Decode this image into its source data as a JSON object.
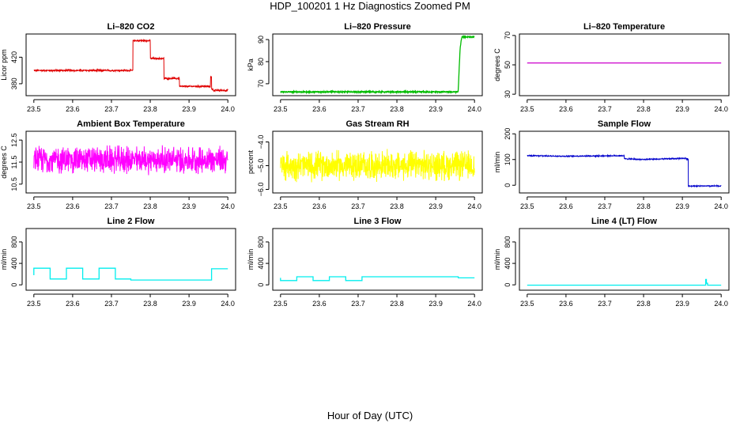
{
  "page": {
    "title": "HDP_100201  1 Hz Diagnostics Zoomed PM",
    "xlabel": "Hour of Day (UTC)"
  },
  "chart_data": [
    {
      "type": "line",
      "title": "Li–820 CO2",
      "ylabel": "Licor ppm",
      "xlim": [
        23.48,
        24.02
      ],
      "ylim": [
        362,
        455
      ],
      "xticks": [
        "23.5",
        "23.6",
        "23.7",
        "23.8",
        "23.9",
        "24.0"
      ],
      "yticks": [
        {
          "value": 380,
          "label": "380"
        },
        {
          "value": 420,
          "label": "420"
        }
      ],
      "color": "#e00000",
      "noise": 1.2,
      "series": [
        {
          "x": [
            23.5,
            23.755,
            23.755,
            23.8,
            23.8,
            23.835,
            23.835,
            23.875,
            23.875,
            23.955,
            23.955,
            23.958,
            23.958,
            23.962,
            23.962,
            24.0
          ],
          "y": [
            400,
            400,
            445,
            445,
            418,
            418,
            388,
            388,
            376,
            376,
            390,
            390,
            372,
            372,
            370,
            370
          ]
        }
      ]
    },
    {
      "type": "line",
      "title": "Li–820 Pressure",
      "ylabel": "kPa",
      "xlim": [
        23.48,
        24.02
      ],
      "ylim": [
        64.6,
        92.5
      ],
      "xticks": [
        "23.5",
        "23.6",
        "23.7",
        "23.8",
        "23.9",
        "24.0"
      ],
      "yticks": [
        {
          "value": 70,
          "label": "70"
        },
        {
          "value": 80,
          "label": "80"
        },
        {
          "value": 90,
          "label": "90"
        }
      ],
      "color": "#00bb00",
      "noise": 0.25,
      "series": [
        {
          "x": [
            23.5,
            23.955,
            23.958,
            23.96,
            23.963,
            23.966,
            23.968,
            24.0
          ],
          "y": [
            66.3,
            66.3,
            66.5,
            75,
            86,
            90,
            91.2,
            91.2
          ]
        }
      ]
    },
    {
      "type": "line",
      "title": "Li–820 Temperature",
      "ylabel": "degrees C",
      "xlim": [
        23.48,
        24.02
      ],
      "ylim": [
        29,
        71
      ],
      "xticks": [
        "23.5",
        "23.6",
        "23.7",
        "23.8",
        "23.9",
        "24.0"
      ],
      "yticks": [
        {
          "value": 30,
          "label": "30"
        },
        {
          "value": 50,
          "label": "50"
        },
        {
          "value": 70,
          "label": "70"
        }
      ],
      "color": "#cc00cc",
      "noise": 0,
      "series": [
        {
          "x": [
            23.5,
            24.0
          ],
          "y": [
            51.3,
            51.3
          ]
        }
      ]
    },
    {
      "type": "line",
      "title": "Ambient Box Temperature",
      "ylabel": "degrees C",
      "xlim": [
        23.48,
        24.02
      ],
      "ylim": [
        10.1,
        12.9
      ],
      "xticks": [
        "23.5",
        "23.6",
        "23.7",
        "23.8",
        "23.9",
        "24.0"
      ],
      "yticks": [
        {
          "value": 10.5,
          "label": "10.5"
        },
        {
          "value": 11.5,
          "label": "11.5"
        },
        {
          "value": 12.5,
          "label": "12.5"
        }
      ],
      "color": "#ff00ff",
      "noise": 0.55,
      "series": [
        {
          "x": [
            23.5,
            24.0
          ],
          "y": [
            11.6,
            11.6
          ]
        }
      ]
    },
    {
      "type": "line",
      "title": "Gas Stream RH",
      "ylabel": "percent",
      "xlim": [
        23.48,
        24.02
      ],
      "ylim": [
        -6.15,
        -3.55
      ],
      "xticks": [
        "23.5",
        "23.6",
        "23.7",
        "23.8",
        "23.9",
        "24.0"
      ],
      "yticks": [
        {
          "value": -6,
          "label": "−6.0"
        },
        {
          "value": -5,
          "label": "−5.0"
        },
        {
          "value": -4,
          "label": "−4.0"
        }
      ],
      "color": "#ffff00",
      "noise": 0.55,
      "series": [
        {
          "x": [
            23.5,
            24.0
          ],
          "y": [
            -5.0,
            -5.0
          ]
        }
      ]
    },
    {
      "type": "line",
      "title": "Sample Flow",
      "ylabel": "ml/min",
      "xlim": [
        23.48,
        24.02
      ],
      "ylim": [
        -30,
        210
      ],
      "xticks": [
        "23.5",
        "23.6",
        "23.7",
        "23.8",
        "23.9",
        "24.0"
      ],
      "yticks": [
        {
          "value": 0,
          "label": "0"
        },
        {
          "value": 100,
          "label": "100"
        },
        {
          "value": 200,
          "label": "200"
        }
      ],
      "color": "#0000cc",
      "noise": 2,
      "series": [
        {
          "x": [
            23.5,
            23.6,
            23.75,
            23.75,
            23.8,
            23.91,
            23.91,
            23.915,
            23.915,
            24.0
          ],
          "y": [
            115,
            113,
            115,
            103,
            100,
            105,
            102,
            102,
            -3,
            -3
          ]
        }
      ]
    },
    {
      "type": "line",
      "title": "Line 2 Flow",
      "ylabel": "ml/min",
      "xlim": [
        23.48,
        24.02
      ],
      "ylim": [
        -100,
        1050
      ],
      "xticks": [
        "23.5",
        "23.6",
        "23.7",
        "23.8",
        "23.9",
        "24.0"
      ],
      "yticks": [
        {
          "value": 0,
          "label": "0"
        },
        {
          "value": 400,
          "label": "400"
        },
        {
          "value": 800,
          "label": "800"
        }
      ],
      "color": "#00eeee",
      "noise": 0,
      "series": [
        {
          "x": [
            23.5,
            23.5,
            23.5,
            23.542,
            23.542,
            23.584,
            23.584,
            23.626,
            23.626,
            23.668,
            23.668,
            23.71,
            23.71,
            23.75,
            23.75,
            23.958,
            23.958,
            24.0
          ],
          "y": [
            200,
            180,
            310,
            310,
            110,
            110,
            310,
            310,
            110,
            110,
            310,
            310,
            110,
            110,
            90,
            90,
            300,
            300
          ]
        }
      ]
    },
    {
      "type": "line",
      "title": "Line 3 Flow",
      "ylabel": "ml/min",
      "xlim": [
        23.48,
        24.02
      ],
      "ylim": [
        -100,
        1050
      ],
      "xticks": [
        "23.5",
        "23.6",
        "23.7",
        "23.8",
        "23.9",
        "24.0"
      ],
      "yticks": [
        {
          "value": 0,
          "label": "0"
        },
        {
          "value": 400,
          "label": "400"
        },
        {
          "value": 800,
          "label": "800"
        }
      ],
      "color": "#00eeee",
      "noise": 0,
      "series": [
        {
          "x": [
            23.5,
            23.5,
            23.5,
            23.542,
            23.542,
            23.584,
            23.584,
            23.626,
            23.626,
            23.668,
            23.668,
            23.71,
            23.71,
            23.958,
            23.958,
            24.0
          ],
          "y": [
            130,
            100,
            80,
            80,
            150,
            150,
            80,
            80,
            150,
            150,
            80,
            80,
            150,
            150,
            130,
            130
          ]
        }
      ]
    },
    {
      "type": "line",
      "title": "Line 4 (LT) Flow",
      "ylabel": "ml/min",
      "xlim": [
        23.48,
        24.02
      ],
      "ylim": [
        -100,
        1050
      ],
      "xticks": [
        "23.5",
        "23.6",
        "23.7",
        "23.8",
        "23.9",
        "24.0"
      ],
      "yticks": [
        {
          "value": 0,
          "label": "0"
        },
        {
          "value": 400,
          "label": "400"
        },
        {
          "value": 800,
          "label": "800"
        }
      ],
      "color": "#00eeee",
      "noise": 0,
      "series": [
        {
          "x": [
            23.5,
            23.96,
            23.96,
            23.962,
            23.962,
            23.965,
            23.965,
            24.0
          ],
          "y": [
            -5,
            -5,
            100,
            100,
            30,
            30,
            -5,
            -5
          ]
        }
      ]
    }
  ]
}
